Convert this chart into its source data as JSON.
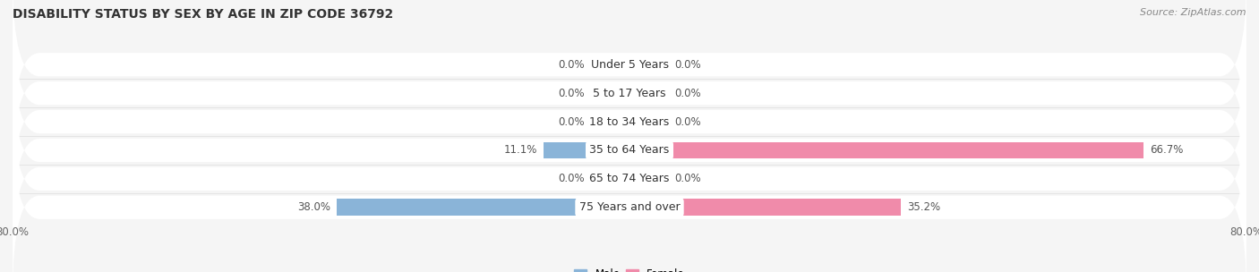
{
  "title": "DISABILITY STATUS BY SEX BY AGE IN ZIP CODE 36792",
  "source": "Source: ZipAtlas.com",
  "categories": [
    "Under 5 Years",
    "5 to 17 Years",
    "18 to 34 Years",
    "35 to 64 Years",
    "65 to 74 Years",
    "75 Years and over"
  ],
  "male_values": [
    0.0,
    0.0,
    0.0,
    11.1,
    0.0,
    38.0
  ],
  "female_values": [
    0.0,
    0.0,
    0.0,
    66.7,
    0.0,
    35.2
  ],
  "male_color": "#8ab4d8",
  "female_color": "#f08baa",
  "male_stub_color": "#adc8e0",
  "female_stub_color": "#f5b8cb",
  "row_bg_color": "#f0f0f0",
  "fig_bg_color": "#f5f5f5",
  "axis_limit": 80.0,
  "stub_size": 5.0,
  "bar_height": 0.58,
  "title_fontsize": 10,
  "source_fontsize": 8,
  "tick_fontsize": 8.5,
  "bar_label_fontsize": 8.5,
  "category_fontsize": 9
}
